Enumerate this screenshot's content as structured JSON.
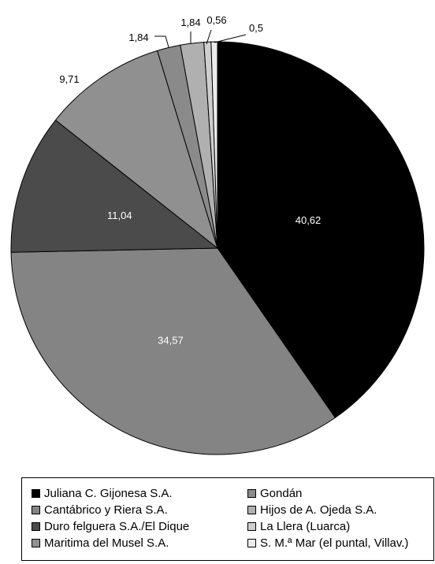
{
  "chart_data": {
    "type": "pie",
    "title": "",
    "start_angle_deg": 0,
    "direction": "clockwise",
    "legend_position": "bottom",
    "slices": [
      {
        "label": "Juliana C. Gijonesa S.A.",
        "value": 40.62,
        "display": "40,62",
        "color": "#000000",
        "label_color": "#ffffff",
        "label_inside": true
      },
      {
        "label": "Cantábrico y Riera S.A.",
        "value": 34.57,
        "display": "34,57",
        "color": "#848484",
        "label_color": "#ffffff",
        "label_inside": true
      },
      {
        "label": "Duro felguera S.A./El Dique",
        "value": 11.04,
        "display": "11,04",
        "color": "#4b4b4b",
        "label_color": "#ffffff",
        "label_inside": true
      },
      {
        "label": "Maritima del Musel S.A.",
        "value": 9.71,
        "display": "9,71",
        "color": "#909090",
        "label_color": "#000000",
        "label_inside": false
      },
      {
        "label": "Gondán",
        "value": 1.84,
        "display": "1,84",
        "color": "#8a8a8a",
        "label_color": "#000000",
        "label_inside": false
      },
      {
        "label": "Hijos de A. Ojeda S.A.",
        "value": 1.84,
        "display": "1,84",
        "color": "#b0b0b0",
        "label_color": "#000000",
        "label_inside": false
      },
      {
        "label": "La Llera (Luarca)",
        "value": 0.56,
        "display": "0,56",
        "color": "#cfcfcf",
        "label_color": "#000000",
        "label_inside": false
      },
      {
        "label": "S. M.ª Mar (el puntal, Villav.)",
        "value": 0.5,
        "display": "0,5",
        "color": "#ececec",
        "label_color": "#000000",
        "label_inside": false
      }
    ]
  }
}
